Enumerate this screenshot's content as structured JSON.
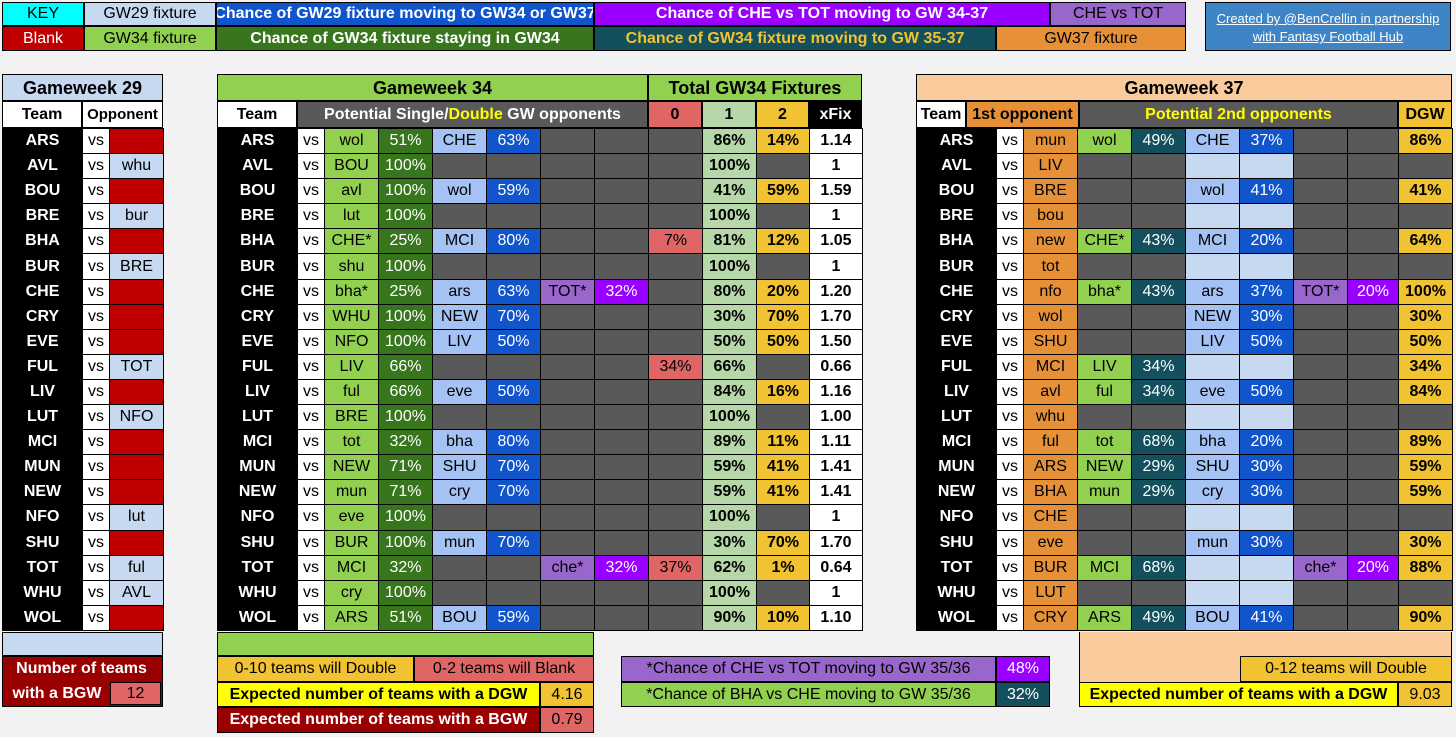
{
  "key": {
    "label": "KEY",
    "blank": "Blank",
    "gw29_fixture": "GW29 fixture",
    "gw34_fixture": "GW34 fixture",
    "chance_gw29_moving": "Chance of GW29 fixture moving to GW34 or GW37",
    "chance_gw34_staying": "Chance of GW34 fixture staying in GW34",
    "chance_che_tot": "Chance of CHE vs TOT moving to GW 34-37",
    "chance_gw34_moving": "Chance of GW34 fixture moving to GW 35-37",
    "che_vs_tot": "CHE vs TOT",
    "gw37_fixture": "GW37 fixture",
    "credit_line1": "Created by @BenCrellin in partnership",
    "credit_line2": "with Fantasy Football Hub"
  },
  "gw29": {
    "title": "Gameweek 29",
    "col_team": "Team",
    "col_opponent": "Opponent",
    "rows": [
      {
        "team": "ARS",
        "vs": "vs",
        "opp": ""
      },
      {
        "team": "AVL",
        "vs": "vs",
        "opp": "whu"
      },
      {
        "team": "BOU",
        "vs": "vs",
        "opp": ""
      },
      {
        "team": "BRE",
        "vs": "vs",
        "opp": "bur"
      },
      {
        "team": "BHA",
        "vs": "vs",
        "opp": ""
      },
      {
        "team": "BUR",
        "vs": "vs",
        "opp": "BRE"
      },
      {
        "team": "CHE",
        "vs": "vs",
        "opp": ""
      },
      {
        "team": "CRY",
        "vs": "vs",
        "opp": ""
      },
      {
        "team": "EVE",
        "vs": "vs",
        "opp": ""
      },
      {
        "team": "FUL",
        "vs": "vs",
        "opp": "TOT"
      },
      {
        "team": "LIV",
        "vs": "vs",
        "opp": ""
      },
      {
        "team": "LUT",
        "vs": "vs",
        "opp": "NFO"
      },
      {
        "team": "MCI",
        "vs": "vs",
        "opp": ""
      },
      {
        "team": "MUN",
        "vs": "vs",
        "opp": ""
      },
      {
        "team": "NEW",
        "vs": "vs",
        "opp": ""
      },
      {
        "team": "NFO",
        "vs": "vs",
        "opp": "lut"
      },
      {
        "team": "SHU",
        "vs": "vs",
        "opp": ""
      },
      {
        "team": "TOT",
        "vs": "vs",
        "opp": "ful"
      },
      {
        "team": "WHU",
        "vs": "vs",
        "opp": "AVL"
      },
      {
        "team": "WOL",
        "vs": "vs",
        "opp": ""
      }
    ],
    "bgw_label1": "Number of  teams",
    "bgw_label2": "with a BGW",
    "bgw_value": "12"
  },
  "gw34": {
    "title": "Gameweek 34",
    "col_team": "Team",
    "col_potential_pre": "Potential  Single/",
    "col_potential_double": "Double",
    "col_potential_post": " GW opponents",
    "total_title": "Total GW34 Fixtures",
    "h0": "0",
    "h1": "1",
    "h2": "2",
    "hx": "xFix",
    "rows": [
      {
        "team": "ARS",
        "vs": "vs",
        "o1": "wol",
        "p1": "51%",
        "o2": "CHE",
        "p2": "63%",
        "o3": "",
        "p3": "",
        "z": "",
        "one": "86%",
        "two": "14%",
        "x": "1.14"
      },
      {
        "team": "AVL",
        "vs": "vs",
        "o1": "BOU",
        "p1": "100%",
        "o2": "",
        "p2": "",
        "o3": "",
        "p3": "",
        "z": "",
        "one": "100%",
        "two": "",
        "x": "1"
      },
      {
        "team": "BOU",
        "vs": "vs",
        "o1": "avl",
        "p1": "100%",
        "o2": "wol",
        "p2": "59%",
        "o3": "",
        "p3": "",
        "z": "",
        "one": "41%",
        "two": "59%",
        "x": "1.59"
      },
      {
        "team": "BRE",
        "vs": "vs",
        "o1": "lut",
        "p1": "100%",
        "o2": "",
        "p2": "",
        "o3": "",
        "p3": "",
        "z": "",
        "one": "100%",
        "two": "",
        "x": "1"
      },
      {
        "team": "BHA",
        "vs": "vs",
        "o1": "CHE*",
        "p1": "25%",
        "o2": "MCI",
        "p2": "80%",
        "o3": "",
        "p3": "",
        "z": "7%",
        "one": "81%",
        "two": "12%",
        "x": "1.05"
      },
      {
        "team": "BUR",
        "vs": "vs",
        "o1": "shu",
        "p1": "100%",
        "o2": "",
        "p2": "",
        "o3": "",
        "p3": "",
        "z": "",
        "one": "100%",
        "two": "",
        "x": "1"
      },
      {
        "team": "CHE",
        "vs": "vs",
        "o1": "bha*",
        "p1": "25%",
        "o2": "ars",
        "p2": "63%",
        "o3": "TOT*",
        "p3": "32%",
        "z": "",
        "one": "80%",
        "two": "20%",
        "x": "1.20"
      },
      {
        "team": "CRY",
        "vs": "vs",
        "o1": "WHU",
        "p1": "100%",
        "o2": "NEW",
        "p2": "70%",
        "o3": "",
        "p3": "",
        "z": "",
        "one": "30%",
        "two": "70%",
        "x": "1.70"
      },
      {
        "team": "EVE",
        "vs": "vs",
        "o1": "NFO",
        "p1": "100%",
        "o2": "LIV",
        "p2": "50%",
        "o3": "",
        "p3": "",
        "z": "",
        "one": "50%",
        "two": "50%",
        "x": "1.50"
      },
      {
        "team": "FUL",
        "vs": "vs",
        "o1": "LIV",
        "p1": "66%",
        "o2": "",
        "p2": "",
        "o3": "",
        "p3": "",
        "z": "34%",
        "one": "66%",
        "two": "",
        "x": "0.66"
      },
      {
        "team": "LIV",
        "vs": "vs",
        "o1": "ful",
        "p1": "66%",
        "o2": "eve",
        "p2": "50%",
        "o3": "",
        "p3": "",
        "z": "",
        "one": "84%",
        "two": "16%",
        "x": "1.16"
      },
      {
        "team": "LUT",
        "vs": "vs",
        "o1": "BRE",
        "p1": "100%",
        "o2": "",
        "p2": "",
        "o3": "",
        "p3": "",
        "z": "",
        "one": "100%",
        "two": "",
        "x": "1.00"
      },
      {
        "team": "MCI",
        "vs": "vs",
        "o1": "tot",
        "p1": "32%",
        "o2": "bha",
        "p2": "80%",
        "o3": "",
        "p3": "",
        "z": "",
        "one": "89%",
        "two": "11%",
        "x": "1.11"
      },
      {
        "team": "MUN",
        "vs": "vs",
        "o1": "NEW",
        "p1": "71%",
        "o2": "SHU",
        "p2": "70%",
        "o3": "",
        "p3": "",
        "z": "",
        "one": "59%",
        "two": "41%",
        "x": "1.41"
      },
      {
        "team": "NEW",
        "vs": "vs",
        "o1": "mun",
        "p1": "71%",
        "o2": "cry",
        "p2": "70%",
        "o3": "",
        "p3": "",
        "z": "",
        "one": "59%",
        "two": "41%",
        "x": "1.41"
      },
      {
        "team": "NFO",
        "vs": "vs",
        "o1": "eve",
        "p1": "100%",
        "o2": "",
        "p2": "",
        "o3": "",
        "p3": "",
        "z": "",
        "one": "100%",
        "two": "",
        "x": "1"
      },
      {
        "team": "SHU",
        "vs": "vs",
        "o1": "BUR",
        "p1": "100%",
        "o2": "mun",
        "p2": "70%",
        "o3": "",
        "p3": "",
        "z": "",
        "one": "30%",
        "two": "70%",
        "x": "1.70"
      },
      {
        "team": "TOT",
        "vs": "vs",
        "o1": "MCI",
        "p1": "32%",
        "o2": "",
        "p2": "",
        "o3": "che*",
        "p3": "32%",
        "z": "37%",
        "one": "62%",
        "two": "1%",
        "x": "0.64"
      },
      {
        "team": "WHU",
        "vs": "vs",
        "o1": "cry",
        "p1": "100%",
        "o2": "",
        "p2": "",
        "o3": "",
        "p3": "",
        "z": "",
        "one": "100%",
        "two": "",
        "x": "1"
      },
      {
        "team": "WOL",
        "vs": "vs",
        "o1": "ARS",
        "p1": "51%",
        "o2": "BOU",
        "p2": "59%",
        "o3": "",
        "p3": "",
        "z": "",
        "one": "90%",
        "two": "10%",
        "x": "1.10"
      }
    ],
    "double_label": "0-10 teams will Double",
    "blank_label": "0-2 teams will Blank",
    "exp_dgw_label": "Expected number of teams with a DGW",
    "exp_dgw_value": "4.16",
    "exp_bgw_label": "Expected number of teams with a BGW",
    "exp_bgw_value": "0.79",
    "che_tot_label": "*Chance of CHE vs TOT moving to GW 35/36",
    "che_tot_value": "48%",
    "bha_che_label": "*Chance of BHA vs CHE moving to GW 35/36",
    "bha_che_value": "32%"
  },
  "gw37": {
    "title": "Gameweek 37",
    "col_team": "Team",
    "col_first": "1st opponent",
    "col_potential": "Potential 2nd opponents",
    "col_dgw": "DGW",
    "rows": [
      {
        "team": "ARS",
        "vs": "vs",
        "o1": "mun",
        "a": "wol",
        "ap": "49%",
        "b": "CHE",
        "bp": "37%",
        "c": "",
        "cp": "",
        "d": "86%"
      },
      {
        "team": "AVL",
        "vs": "vs",
        "o1": "LIV",
        "a": "",
        "ap": "",
        "b": "",
        "bp": "",
        "c": "",
        "cp": "",
        "d": ""
      },
      {
        "team": "BOU",
        "vs": "vs",
        "o1": "BRE",
        "a": "",
        "ap": "",
        "b": "wol",
        "bp": "41%",
        "c": "",
        "cp": "",
        "d": "41%"
      },
      {
        "team": "BRE",
        "vs": "vs",
        "o1": "bou",
        "a": "",
        "ap": "",
        "b": "",
        "bp": "",
        "c": "",
        "cp": "",
        "d": ""
      },
      {
        "team": "BHA",
        "vs": "vs",
        "o1": "new",
        "a": "CHE*",
        "ap": "43%",
        "b": "MCI",
        "bp": "20%",
        "c": "",
        "cp": "",
        "d": "64%"
      },
      {
        "team": "BUR",
        "vs": "vs",
        "o1": "tot",
        "a": "",
        "ap": "",
        "b": "",
        "bp": "",
        "c": "",
        "cp": "",
        "d": ""
      },
      {
        "team": "CHE",
        "vs": "vs",
        "o1": "nfo",
        "a": "bha*",
        "ap": "43%",
        "b": "ars",
        "bp": "37%",
        "c": "TOT*",
        "cp": "20%",
        "d": "100%"
      },
      {
        "team": "CRY",
        "vs": "vs",
        "o1": "wol",
        "a": "",
        "ap": "",
        "b": "NEW",
        "bp": "30%",
        "c": "",
        "cp": "",
        "d": "30%"
      },
      {
        "team": "EVE",
        "vs": "vs",
        "o1": "SHU",
        "a": "",
        "ap": "",
        "b": "LIV",
        "bp": "50%",
        "c": "",
        "cp": "",
        "d": "50%"
      },
      {
        "team": "FUL",
        "vs": "vs",
        "o1": "MCI",
        "a": "LIV",
        "ap": "34%",
        "b": "",
        "bp": "",
        "c": "",
        "cp": "",
        "d": "34%"
      },
      {
        "team": "LIV",
        "vs": "vs",
        "o1": "avl",
        "a": "ful",
        "ap": "34%",
        "b": "eve",
        "bp": "50%",
        "c": "",
        "cp": "",
        "d": "84%"
      },
      {
        "team": "LUT",
        "vs": "vs",
        "o1": "whu",
        "a": "",
        "ap": "",
        "b": "",
        "bp": "",
        "c": "",
        "cp": "",
        "d": ""
      },
      {
        "team": "MCI",
        "vs": "vs",
        "o1": "ful",
        "a": "tot",
        "ap": "68%",
        "b": "bha",
        "bp": "20%",
        "c": "",
        "cp": "",
        "d": "89%"
      },
      {
        "team": "MUN",
        "vs": "vs",
        "o1": "ARS",
        "a": "NEW",
        "ap": "29%",
        "b": "SHU",
        "bp": "30%",
        "c": "",
        "cp": "",
        "d": "59%"
      },
      {
        "team": "NEW",
        "vs": "vs",
        "o1": "BHA",
        "a": "mun",
        "ap": "29%",
        "b": "cry",
        "bp": "30%",
        "c": "",
        "cp": "",
        "d": "59%"
      },
      {
        "team": "NFO",
        "vs": "vs",
        "o1": "CHE",
        "a": "",
        "ap": "",
        "b": "",
        "bp": "",
        "c": "",
        "cp": "",
        "d": ""
      },
      {
        "team": "SHU",
        "vs": "vs",
        "o1": "eve",
        "a": "",
        "ap": "",
        "b": "mun",
        "bp": "30%",
        "c": "",
        "cp": "",
        "d": "30%"
      },
      {
        "team": "TOT",
        "vs": "vs",
        "o1": "BUR",
        "a": "MCI",
        "ap": "68%",
        "b": "",
        "bp": "",
        "c": "che*",
        "cp": "20%",
        "d": "88%"
      },
      {
        "team": "WHU",
        "vs": "vs",
        "o1": "LUT",
        "a": "",
        "ap": "",
        "b": "",
        "bp": "",
        "c": "",
        "cp": "",
        "d": ""
      },
      {
        "team": "WOL",
        "vs": "vs",
        "o1": "CRY",
        "a": "ARS",
        "ap": "49%",
        "b": "BOU",
        "bp": "41%",
        "c": "",
        "cp": "",
        "d": "90%"
      }
    ],
    "double_label": "0-12 teams will Double",
    "exp_dgw_label": "Expected number of teams with a DGW",
    "exp_dgw_value": "9.03"
  },
  "colors": {
    "black": "#000000",
    "blank_red": "#c00000",
    "light_blue": "#c6d9f1",
    "light_green": "#92d050",
    "dark_green": "#38761d",
    "mid_blue": "#a4c2f4",
    "royal_blue": "#1155cc",
    "lavender": "#9966cc",
    "violet": "#9900ff",
    "salmon": "#e06666",
    "pale_green": "#b6d7a8",
    "gold": "#f1c232",
    "orange": "#e69138",
    "teal": "#134f5c",
    "peach": "#f9cb9c",
    "yellow": "#ffff00",
    "grey": "#595959"
  }
}
